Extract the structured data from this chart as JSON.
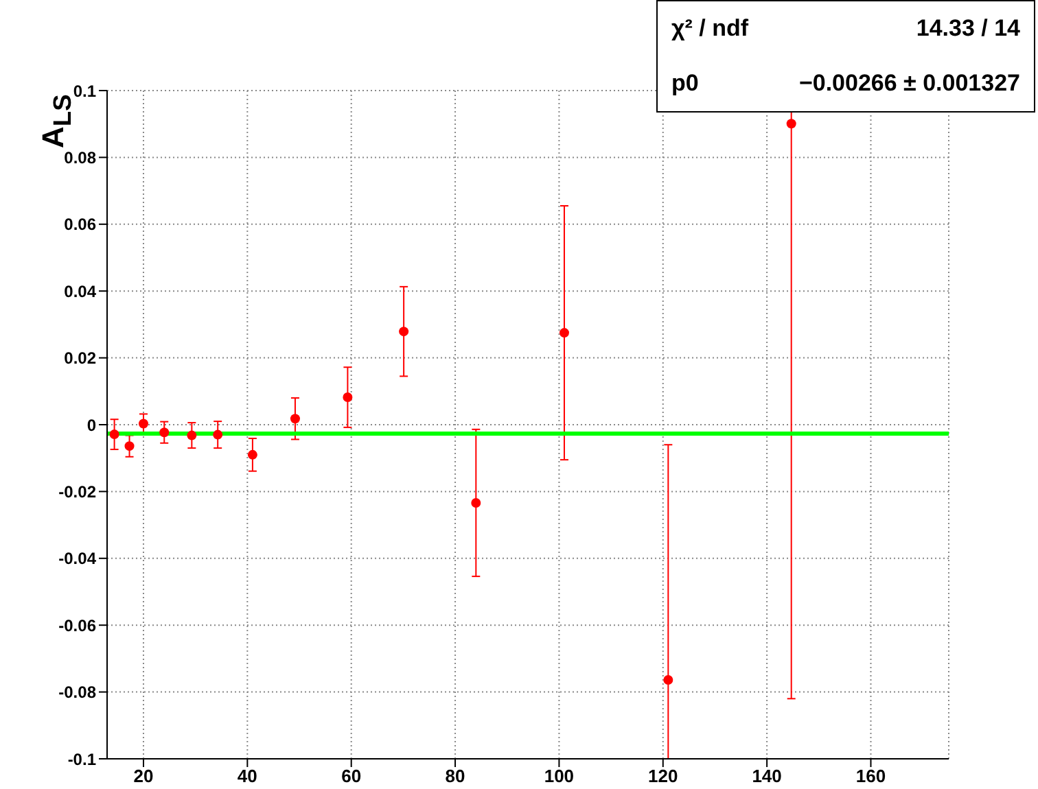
{
  "chart_data": {
    "type": "scatter",
    "ylabel": "A$_{LS}$",
    "annotations": [
      "χ² / ndf",
      "14.33 / 14",
      "p0",
      "−0.00266 ± 0.001327"
    ],
    "xlim": [
      13,
      175
    ],
    "xticks": [
      20,
      40,
      60,
      80,
      100,
      120,
      140,
      160
    ],
    "ylim": [
      -0.1,
      0.1
    ],
    "yticks": [
      -0.1,
      -0.08,
      -0.06,
      -0.04,
      -0.02,
      0,
      0.02,
      0.04,
      0.06,
      0.08,
      0.1
    ],
    "grid": true,
    "series": [
      {
        "marker": "circle",
        "color": "#ff0000",
        "x": [
          14.4,
          17.3,
          20,
          24,
          29.3,
          34.3,
          41,
          49.2,
          59.3,
          70.1,
          84,
          101,
          121,
          144.7
        ],
        "values": [
          -0.0029,
          -0.0064,
          0.0003,
          -0.0023,
          -0.0032,
          -0.003,
          -0.009,
          0.0018,
          0.0082,
          0.0279,
          -0.0234,
          0.0275,
          -0.0764,
          0.0901
        ],
        "errors": [
          0.0045,
          0.0032,
          0.0029,
          0.0032,
          0.0038,
          0.004,
          0.0049,
          0.0062,
          0.009,
          0.0134,
          0.022,
          0.038,
          [
            -0.1,
            -0.006
          ],
          [
            -0.082,
            0.094
          ]
        ]
      },
      {
        "type": "line",
        "color": "#00ff00",
        "x": [
          13,
          175
        ],
        "values": [
          -0.00266,
          -0.00266
        ]
      }
    ]
  }
}
